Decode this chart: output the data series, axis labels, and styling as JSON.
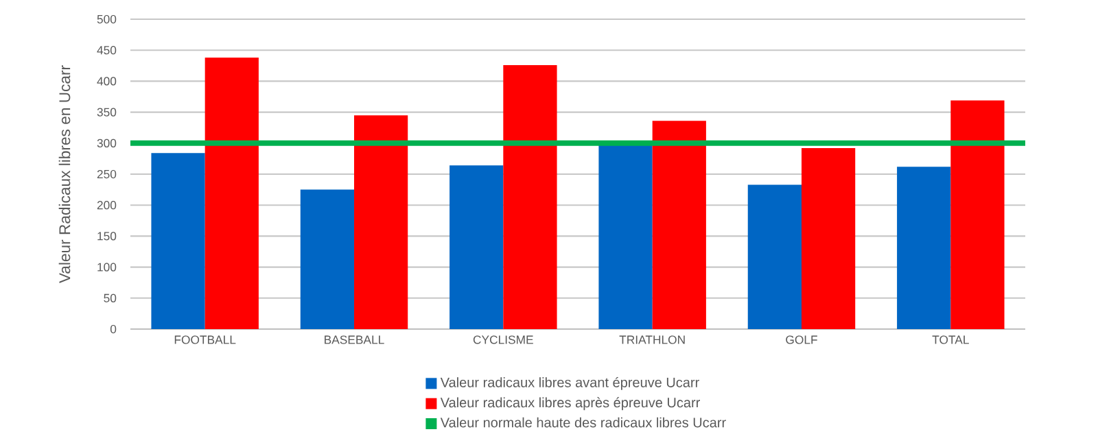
{
  "chart_data": {
    "type": "bar",
    "ylabel": "Valeur Radicaux libres en Ucarr",
    "categories": [
      "FOOTBALL",
      "BASEBALL",
      "CYCLISME",
      "TRIATHLON",
      "GOLF",
      "TOTAL"
    ],
    "series": [
      {
        "name": "Valeur radicaux libres avant épreuve Ucarr",
        "color": "#0066c4",
        "values": [
          284,
          225,
          264,
          299,
          233,
          262
        ]
      },
      {
        "name": "Valeur radicaux libres après épreuve Ucarr",
        "color": "#ff0000",
        "values": [
          438,
          345,
          426,
          336,
          292,
          369
        ]
      }
    ],
    "ref_lines": [
      {
        "axis": "y",
        "value": 300,
        "label": "Valeur normale haute des radicaux libres Ucarr",
        "color": "#00b050"
      }
    ],
    "ylim": [
      0,
      500
    ],
    "yticks": [
      0,
      50,
      100,
      150,
      200,
      250,
      300,
      350,
      400,
      450,
      500
    ],
    "grid": "y",
    "legend": "bottom"
  }
}
